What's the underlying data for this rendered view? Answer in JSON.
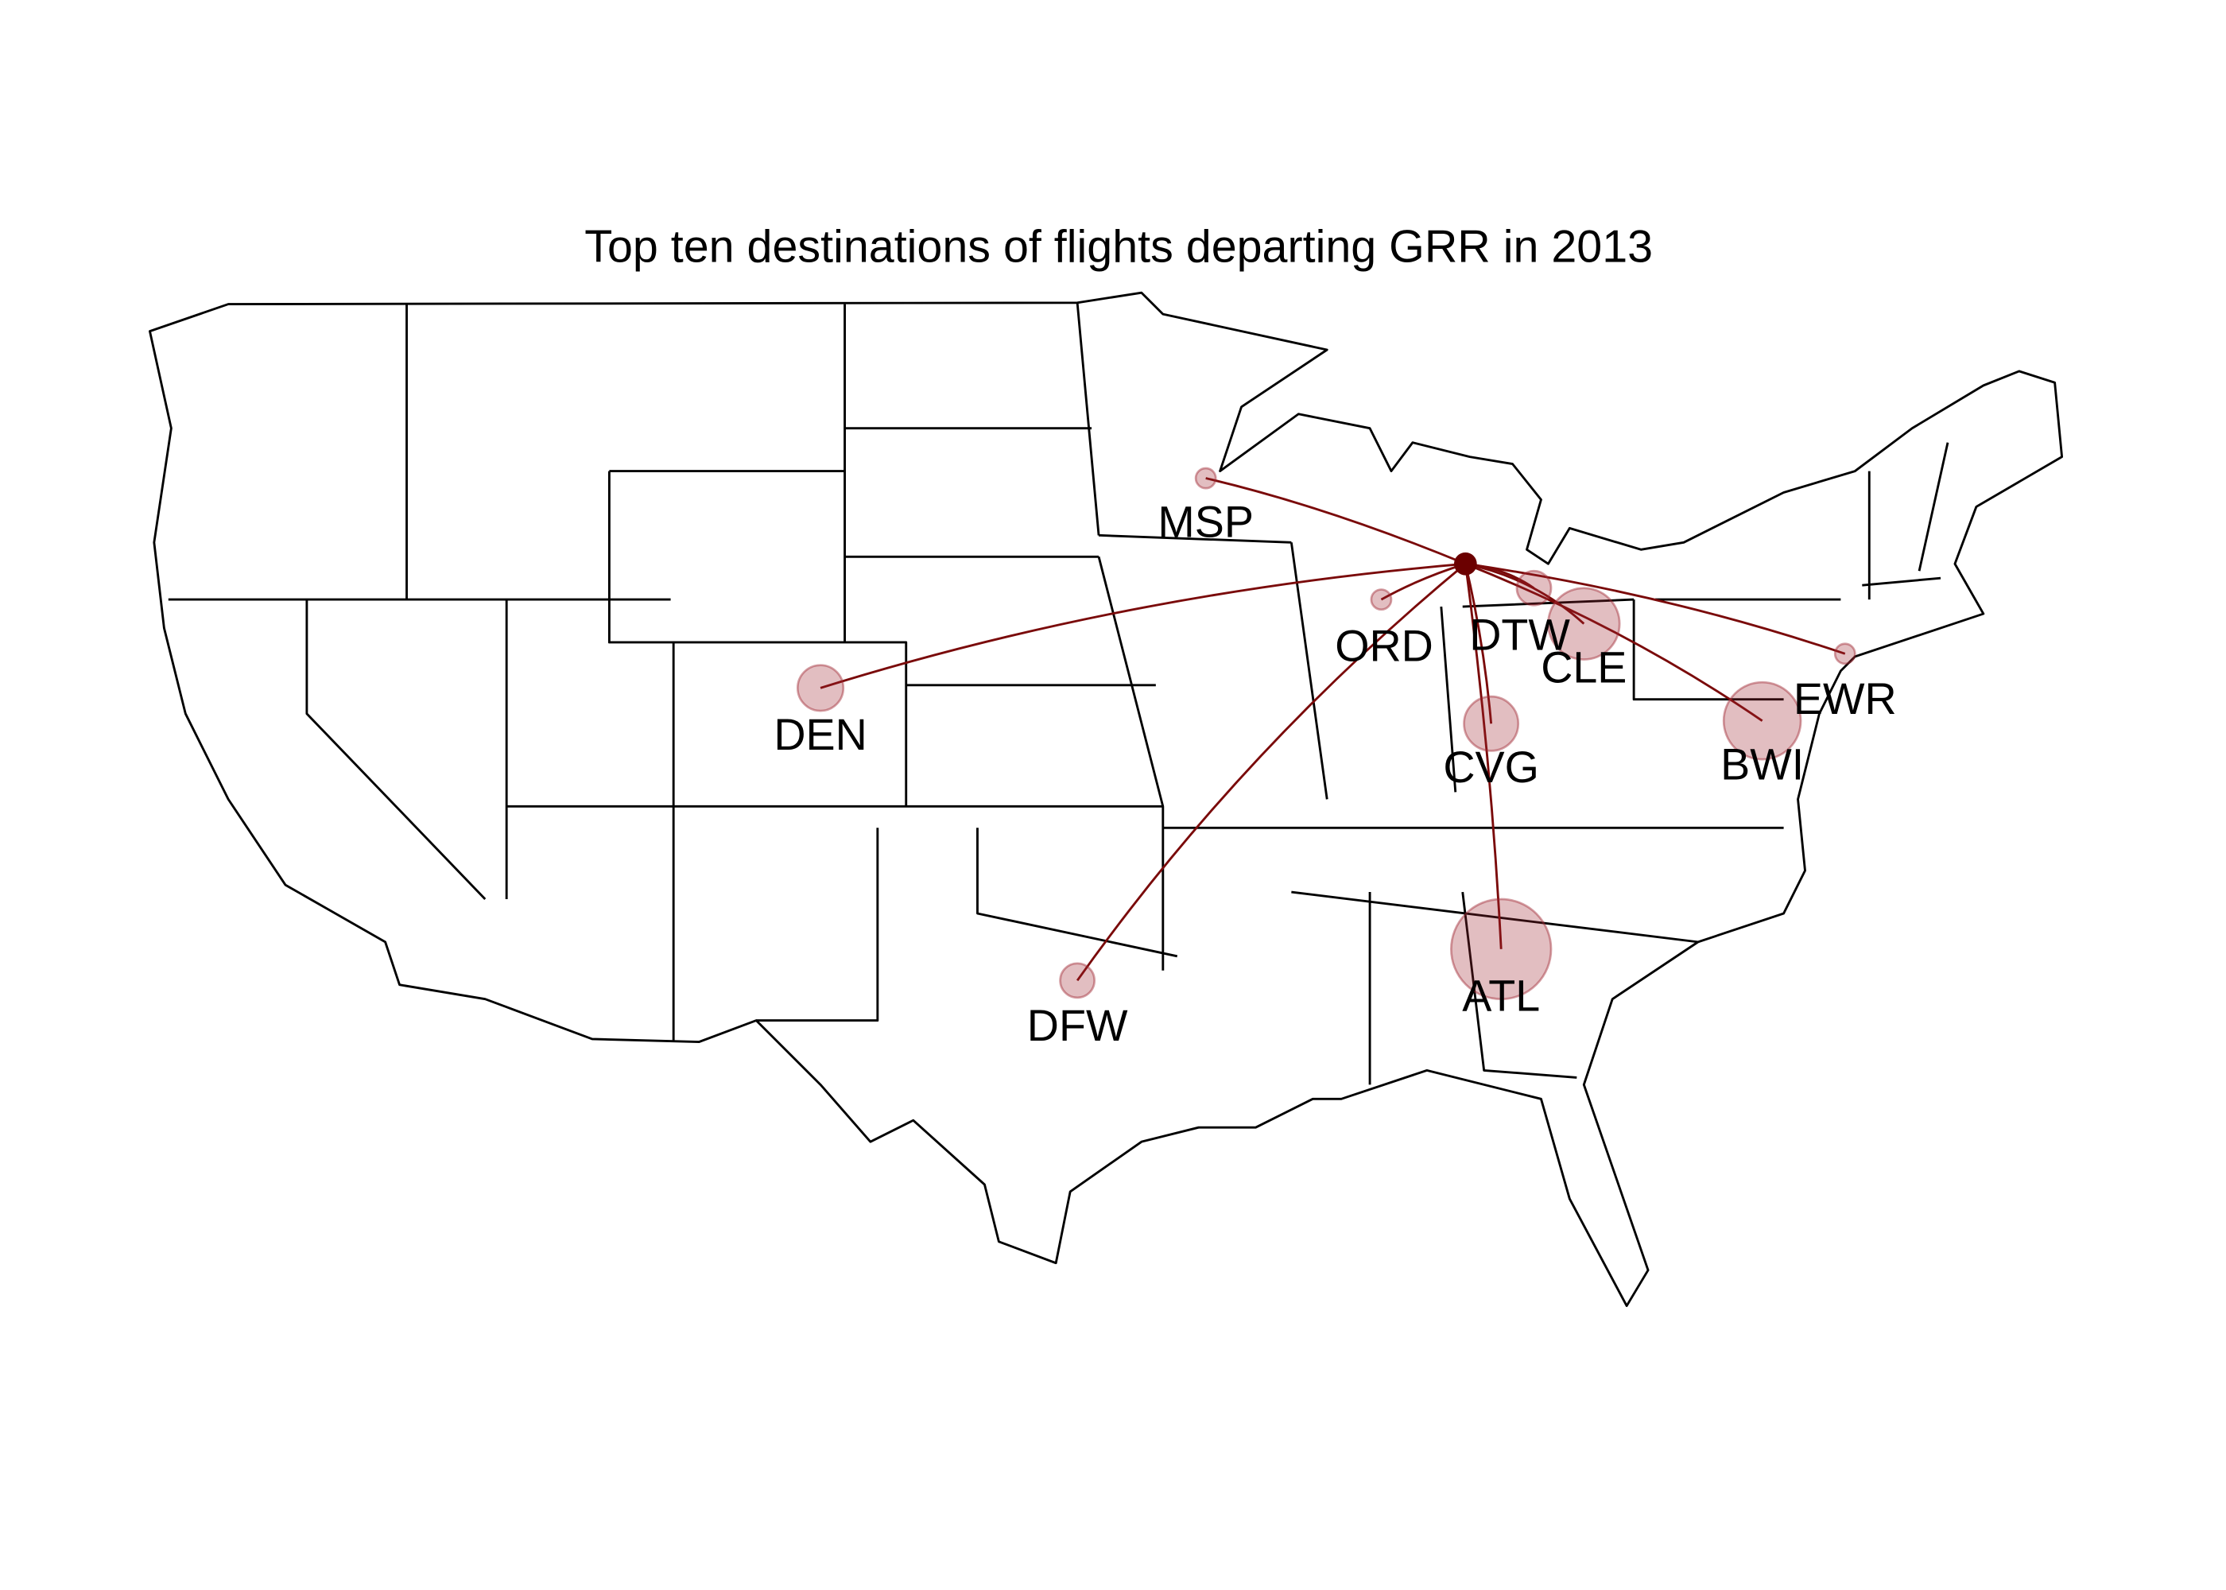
{
  "title": "Top ten destinations of flights departing GRR in 2013",
  "airports": [
    {
      "label": "MSP"
    },
    {
      "label": "ORD"
    },
    {
      "label": "DTW"
    },
    {
      "label": "CLE"
    },
    {
      "label": "CVG"
    },
    {
      "label": "ATL"
    },
    {
      "label": "EWR"
    },
    {
      "label": "BWI"
    },
    {
      "label": "DEN"
    },
    {
      "label": "DFW"
    }
  ]
}
